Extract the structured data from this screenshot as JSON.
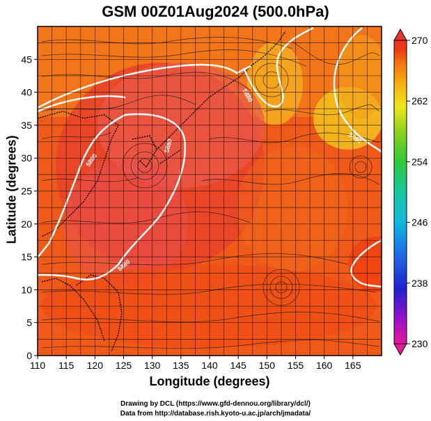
{
  "title": "GSM 00Z01Aug2024 (500.0hPa)",
  "axes": {
    "xlabel": "Longitude (degrees)",
    "ylabel": "Latitude  (degrees)",
    "x_ticks": [
      "110",
      "115",
      "120",
      "125",
      "130",
      "135",
      "140",
      "145",
      "150",
      "155",
      "160",
      "165"
    ],
    "y_ticks": [
      "0",
      "5",
      "10",
      "15",
      "20",
      "25",
      "30",
      "35",
      "40",
      "45"
    ],
    "xlim": [
      110,
      170
    ],
    "ylim": [
      0,
      50
    ]
  },
  "colorbar": {
    "ticks": [
      "270",
      "262",
      "254",
      "246",
      "238",
      "230"
    ],
    "range": [
      230,
      270
    ],
    "colors": [
      "#e6189b",
      "#9a10c8",
      "#2020d0",
      "#1e6ee6",
      "#12b8e0",
      "#16c8a0",
      "#2ec83a",
      "#8ed21c",
      "#f0e61a",
      "#f7b415",
      "#f57a10",
      "#ee3a10",
      "#e8342c"
    ]
  },
  "contour_labels": [
    "5880",
    "5880",
    "5880",
    "5880",
    "5880"
  ],
  "credits": {
    "line1": "Drawing by DCL (https://www.gfd-dennou.org/library/dcl/)",
    "line2": "Data from http://database.rish.kyoto-u.ac.jp/arch/jmadata/"
  }
}
